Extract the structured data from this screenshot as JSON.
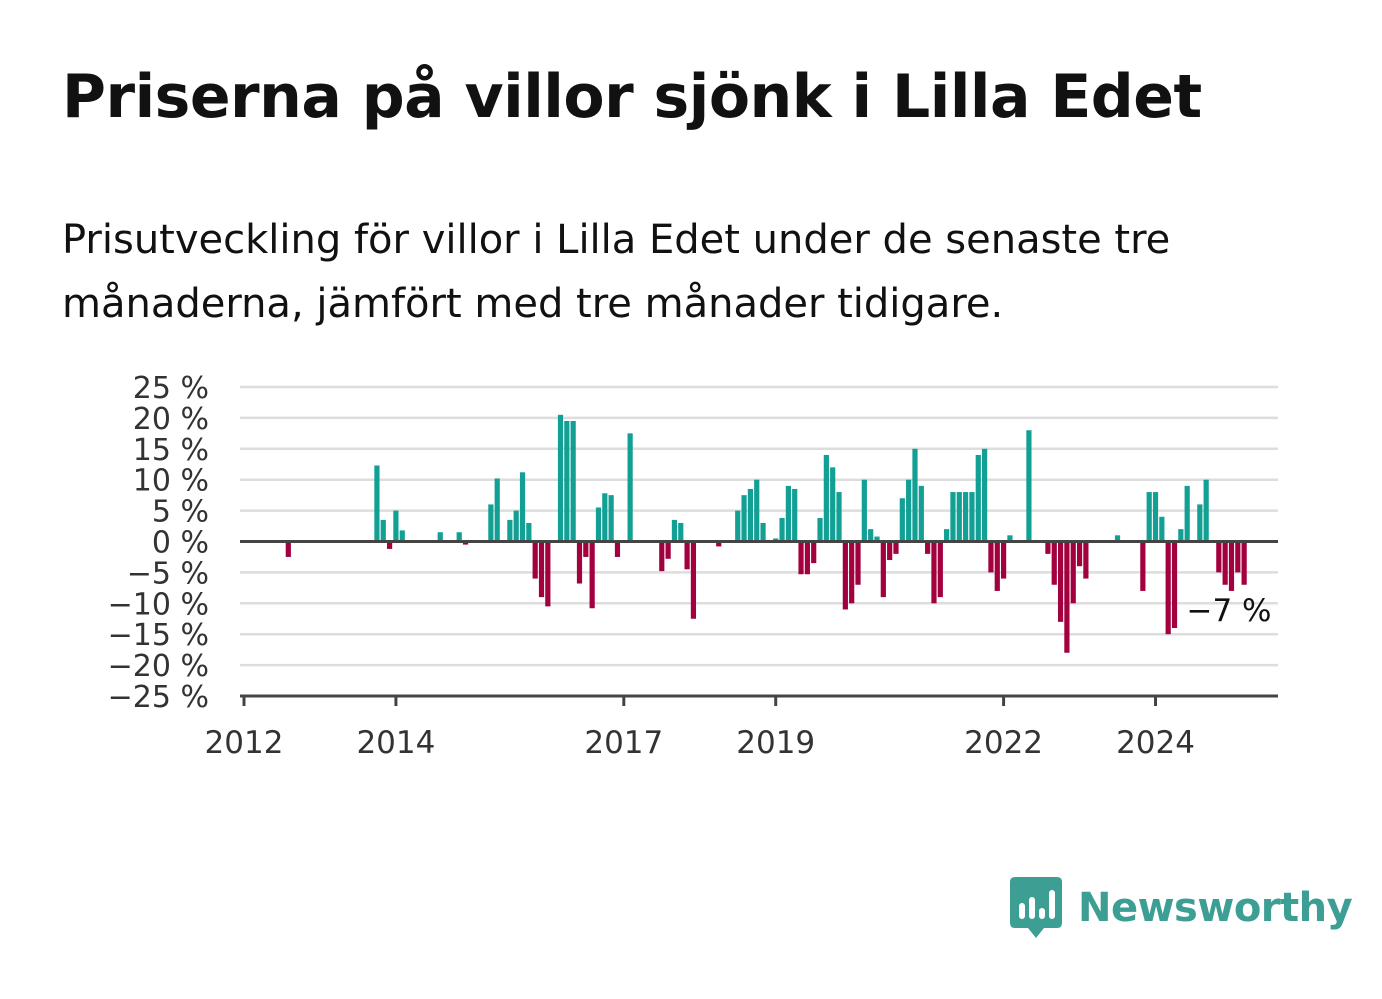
{
  "title": "Priserna på villor sjönk i Lilla Edet",
  "subtitle": "Prisutveckling för villor i Lilla Edet under de senaste tre månaderna, jämfört med tre månader tidigare.",
  "brand": {
    "name": "Newsworthy",
    "icon": "newsworthy-logo-icon",
    "color": "#3d9e94"
  },
  "colors": {
    "positive": "#12a094",
    "negative": "#a3003f",
    "grid": "#dddddd",
    "axis": "#444444"
  },
  "chart_data": {
    "type": "bar",
    "title": "Priserna på villor sjönk i Lilla Edet",
    "subtitle": "Prisutveckling för villor i Lilla Edet under de senaste tre månaderna, jämfört med tre månader tidigare.",
    "xlabel": "",
    "ylabel": "",
    "x_unit": "month",
    "x_start": "2012-01",
    "ylim": [
      -25,
      25
    ],
    "ytick_values": [
      25,
      20,
      15,
      10,
      5,
      0,
      -5,
      -10,
      -15,
      -20,
      -25
    ],
    "yticks": [
      "25 %",
      "20 %",
      "15 %",
      "10 %",
      "5 %",
      "0 %",
      "−5 %",
      "−10 %",
      "−15 %",
      "−20 %",
      "−25 %"
    ],
    "xticks": [
      {
        "label": "2012",
        "date": "2012-01"
      },
      {
        "label": "2014",
        "date": "2014-01"
      },
      {
        "label": "2017",
        "date": "2017-01"
      },
      {
        "label": "2019",
        "date": "2019-01"
      },
      {
        "label": "2022",
        "date": "2022-01"
      },
      {
        "label": "2024",
        "date": "2024-01"
      }
    ],
    "grid": true,
    "legend": "none",
    "annotation": {
      "text": "−7 %",
      "date": "2024-10",
      "value": -7
    },
    "series": [
      {
        "values": [
          {
            "date": "2012-08",
            "value": -2.5
          },
          {
            "date": "2013-10",
            "value": 12.3
          },
          {
            "date": "2013-11",
            "value": 3.5
          },
          {
            "date": "2013-12",
            "value": -1.2
          },
          {
            "date": "2014-01",
            "value": 5.0
          },
          {
            "date": "2014-02",
            "value": 1.8
          },
          {
            "date": "2014-08",
            "value": 1.5
          },
          {
            "date": "2014-11",
            "value": 1.5
          },
          {
            "date": "2014-12",
            "value": -0.5
          },
          {
            "date": "2015-04",
            "value": 6.0
          },
          {
            "date": "2015-05",
            "value": 10.2
          },
          {
            "date": "2015-07",
            "value": 3.5
          },
          {
            "date": "2015-08",
            "value": 5.0
          },
          {
            "date": "2015-09",
            "value": 11.2
          },
          {
            "date": "2015-10",
            "value": 3.0
          },
          {
            "date": "2015-11",
            "value": -6.0
          },
          {
            "date": "2015-12",
            "value": -9.0
          },
          {
            "date": "2016-01",
            "value": -10.5
          },
          {
            "date": "2016-03",
            "value": 20.5
          },
          {
            "date": "2016-04",
            "value": 19.5
          },
          {
            "date": "2016-05",
            "value": 19.5
          },
          {
            "date": "2016-06",
            "value": -6.8
          },
          {
            "date": "2016-07",
            "value": -2.5
          },
          {
            "date": "2016-08",
            "value": -10.8
          },
          {
            "date": "2016-09",
            "value": 5.5
          },
          {
            "date": "2016-10",
            "value": 7.8
          },
          {
            "date": "2016-11",
            "value": 7.5
          },
          {
            "date": "2016-12",
            "value": -2.5
          },
          {
            "date": "2017-02",
            "value": 17.5
          },
          {
            "date": "2017-07",
            "value": -4.8
          },
          {
            "date": "2017-08",
            "value": -2.8
          },
          {
            "date": "2017-09",
            "value": 3.5
          },
          {
            "date": "2017-10",
            "value": 3.0
          },
          {
            "date": "2017-11",
            "value": -4.5
          },
          {
            "date": "2017-12",
            "value": -12.5
          },
          {
            "date": "2018-04",
            "value": -0.8
          },
          {
            "date": "2018-07",
            "value": 5.0
          },
          {
            "date": "2018-08",
            "value": 7.5
          },
          {
            "date": "2018-09",
            "value": 8.5
          },
          {
            "date": "2018-10",
            "value": 10.0
          },
          {
            "date": "2018-11",
            "value": 3.0
          },
          {
            "date": "2019-01",
            "value": 0.5
          },
          {
            "date": "2019-02",
            "value": 3.8
          },
          {
            "date": "2019-03",
            "value": 9.0
          },
          {
            "date": "2019-04",
            "value": 8.5
          },
          {
            "date": "2019-05",
            "value": -5.3
          },
          {
            "date": "2019-06",
            "value": -5.3
          },
          {
            "date": "2019-07",
            "value": -3.5
          },
          {
            "date": "2019-08",
            "value": 3.8
          },
          {
            "date": "2019-09",
            "value": 14.0
          },
          {
            "date": "2019-10",
            "value": 12.0
          },
          {
            "date": "2019-11",
            "value": 8.0
          },
          {
            "date": "2019-12",
            "value": -11.0
          },
          {
            "date": "2020-01",
            "value": -10.0
          },
          {
            "date": "2020-02",
            "value": -7.0
          },
          {
            "date": "2020-03",
            "value": 10.0
          },
          {
            "date": "2020-04",
            "value": 2.0
          },
          {
            "date": "2020-05",
            "value": 0.8
          },
          {
            "date": "2020-06",
            "value": -9.0
          },
          {
            "date": "2020-07",
            "value": -3.0
          },
          {
            "date": "2020-08",
            "value": -2.0
          },
          {
            "date": "2020-09",
            "value": 7.0
          },
          {
            "date": "2020-10",
            "value": 10.0
          },
          {
            "date": "2020-11",
            "value": 15.0
          },
          {
            "date": "2020-12",
            "value": 9.0
          },
          {
            "date": "2021-01",
            "value": -2.0
          },
          {
            "date": "2021-02",
            "value": -10.0
          },
          {
            "date": "2021-03",
            "value": -9.0
          },
          {
            "date": "2021-04",
            "value": 2.0
          },
          {
            "date": "2021-05",
            "value": 8.0
          },
          {
            "date": "2021-06",
            "value": 8.0
          },
          {
            "date": "2021-07",
            "value": 8.0
          },
          {
            "date": "2021-08",
            "value": 8.0
          },
          {
            "date": "2021-09",
            "value": 14.0
          },
          {
            "date": "2021-10",
            "value": 15.0
          },
          {
            "date": "2021-11",
            "value": -5.0
          },
          {
            "date": "2021-12",
            "value": -8.0
          },
          {
            "date": "2022-01",
            "value": -6.0
          },
          {
            "date": "2022-02",
            "value": 1.0
          },
          {
            "date": "2022-05",
            "value": 18.0
          },
          {
            "date": "2022-08",
            "value": -2.0
          },
          {
            "date": "2022-09",
            "value": -7.0
          },
          {
            "date": "2022-10",
            "value": -13.0
          },
          {
            "date": "2022-11",
            "value": -18.0
          },
          {
            "date": "2022-12",
            "value": -10.0
          },
          {
            "date": "2023-01",
            "value": -4.0
          },
          {
            "date": "2023-02",
            "value": -6.0
          },
          {
            "date": "2023-07",
            "value": 1.0
          },
          {
            "date": "2023-11",
            "value": -8.0
          },
          {
            "date": "2023-12",
            "value": 8.0
          },
          {
            "date": "2024-01",
            "value": 8.0
          },
          {
            "date": "2024-02",
            "value": 4.0
          },
          {
            "date": "2024-03",
            "value": -15.0
          },
          {
            "date": "2024-04",
            "value": -14.0
          },
          {
            "date": "2024-05",
            "value": 2.0
          },
          {
            "date": "2024-06",
            "value": 9.0
          },
          {
            "date": "2024-08",
            "value": 6.0
          },
          {
            "date": "2024-09",
            "value": 10.0
          },
          {
            "date": "2024-11",
            "value": -5.0
          },
          {
            "date": "2024-12",
            "value": -7.0
          },
          {
            "date": "2025-01",
            "value": -8.0
          },
          {
            "date": "2025-02",
            "value": -5.0
          },
          {
            "date": "2025-03",
            "value": -7.0
          }
        ]
      }
    ]
  }
}
